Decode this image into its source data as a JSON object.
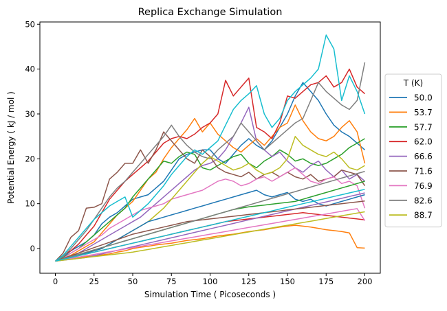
{
  "chart_data": {
    "type": "line",
    "title": "Replica Exchange Simulation",
    "xlabel": "Simulation Time ( Picoseconds )",
    "ylabel": "Potential Energy ( kJ / mol )",
    "xlim": [
      -10,
      210
    ],
    "ylim": [
      -5.5,
      50.5
    ],
    "xticks": [
      0,
      25,
      50,
      75,
      100,
      125,
      150,
      175,
      200
    ],
    "yticks": [
      0,
      10,
      20,
      30,
      40,
      50
    ],
    "legend": {
      "title": "T (K)",
      "position": "right-outside"
    },
    "x": [
      0,
      5,
      10,
      15,
      20,
      25,
      30,
      35,
      40,
      45,
      50,
      55,
      60,
      65,
      70,
      75,
      80,
      85,
      90,
      95,
      100,
      105,
      110,
      115,
      120,
      125,
      130,
      135,
      140,
      145,
      150,
      155,
      160,
      165,
      170,
      175,
      180,
      185,
      190,
      195,
      200
    ],
    "series": [
      {
        "name": "50.0",
        "color": "#1f77b4",
        "values": [
          -2.8,
          -2.0,
          -0.5,
          0.5,
          1.5,
          3.0,
          5.5,
          7.0,
          8.0,
          9.5,
          11.0,
          11.5,
          12.0,
          13.5,
          15.0,
          17.5,
          20.0,
          21.0,
          21.5,
          22.0,
          22.0,
          20.0,
          19.0,
          21.0,
          23.0,
          24.5,
          23.0,
          22.0,
          24.0,
          27.0,
          30.0,
          34.0,
          37.0,
          35.0,
          33.0,
          30.0,
          27.5,
          26.0,
          25.0,
          23.5,
          22.0
        ]
      },
      {
        "name": "53.7",
        "color": "#ff7f0e",
        "values": [
          -2.8,
          -2.2,
          -1.5,
          -0.5,
          0.5,
          1.5,
          3.5,
          5.5,
          7.5,
          9.0,
          10.5,
          13.0,
          15.5,
          17.0,
          20.0,
          22.5,
          24.5,
          26.5,
          29.0,
          26.0,
          28.0,
          25.5,
          24.0,
          22.5,
          21.5,
          23.0,
          24.5,
          23.0,
          25.0,
          27.0,
          28.0,
          32.0,
          28.5,
          26.0,
          24.5,
          24.0,
          25.0,
          27.0,
          28.5,
          26.0,
          19.0
        ]
      },
      {
        "name": "57.7",
        "color": "#2ca02c",
        "values": [
          -2.8,
          -2.0,
          -1.0,
          0.0,
          1.5,
          3.0,
          4.5,
          6.0,
          7.5,
          9.0,
          11.5,
          13.5,
          15.5,
          17.5,
          19.5,
          19.0,
          20.5,
          21.5,
          21.0,
          18.0,
          17.5,
          18.5,
          19.5,
          20.5,
          21.0,
          19.0,
          18.0,
          19.5,
          20.5,
          22.0,
          21.0,
          19.5,
          20.0,
          19.0,
          18.5,
          19.0,
          20.0,
          21.0,
          22.5,
          23.5,
          24.5
        ]
      },
      {
        "name": "62.0",
        "color": "#d62728",
        "values": [
          -2.8,
          -1.5,
          -0.5,
          1.0,
          3.0,
          5.0,
          8.0,
          11.0,
          13.0,
          15.0,
          16.5,
          18.0,
          19.5,
          21.5,
          23.5,
          24.5,
          25.0,
          24.5,
          25.5,
          27.0,
          28.0,
          30.0,
          37.5,
          34.0,
          36.0,
          38.0,
          27.0,
          26.0,
          24.5,
          28.0,
          34.0,
          33.5,
          35.0,
          36.5,
          37.0,
          38.5,
          36.0,
          37.0,
          40.0,
          36.0,
          34.5
        ]
      },
      {
        "name": "66.6",
        "color": "#9467bd",
        "values": [
          -2.8,
          -2.5,
          -1.8,
          -1.0,
          0.0,
          1.0,
          2.0,
          3.0,
          4.0,
          5.0,
          6.0,
          7.0,
          8.5,
          10.0,
          11.5,
          13.0,
          14.5,
          16.0,
          17.5,
          18.5,
          19.0,
          20.0,
          22.0,
          25.0,
          28.0,
          31.5,
          24.0,
          22.0,
          20.5,
          21.5,
          19.5,
          18.0,
          17.0,
          18.5,
          19.5,
          17.5,
          16.0,
          17.5,
          15.5,
          16.5,
          15.0
        ]
      },
      {
        "name": "71.6",
        "color": "#8c564b",
        "values": [
          -2.8,
          -1.0,
          2.5,
          4.0,
          9.0,
          9.2,
          10.0,
          15.5,
          17.0,
          19.0,
          19.0,
          22.0,
          19.0,
          22.0,
          26.0,
          24.0,
          22.0,
          20.0,
          19.0,
          22.0,
          20.5,
          18.0,
          17.0,
          16.5,
          16.0,
          17.0,
          15.5,
          16.5,
          17.0,
          16.0,
          17.0,
          16.0,
          15.5,
          16.5,
          15.0,
          15.5,
          16.0,
          17.5,
          17.0,
          16.5,
          14.0
        ]
      },
      {
        "name": "76.9",
        "color": "#e377c2",
        "values": [
          -2.8,
          -2.2,
          -1.0,
          0.0,
          1.0,
          2.0,
          3.0,
          4.5,
          5.5,
          6.5,
          7.5,
          8.5,
          9.0,
          9.5,
          10.0,
          11.0,
          11.5,
          12.0,
          12.5,
          13.0,
          14.0,
          15.0,
          15.5,
          15.0,
          14.0,
          14.5,
          15.5,
          16.0,
          15.0,
          16.0,
          17.0,
          18.0,
          16.5,
          15.0,
          14.5,
          15.5,
          16.0,
          14.5,
          15.0,
          14.0,
          9.0
        ]
      },
      {
        "name": "82.6",
        "color": "#7f7f7f",
        "values": [
          -2.8,
          -1.8,
          0.0,
          2.0,
          4.0,
          6.5,
          9.0,
          11.5,
          13.5,
          15.0,
          17.0,
          19.0,
          21.0,
          23.0,
          25.0,
          27.5,
          25.0,
          23.0,
          21.5,
          20.5,
          20.0,
          22.0,
          23.5,
          25.0,
          28.0,
          26.0,
          24.0,
          22.0,
          23.5,
          25.0,
          26.5,
          28.0,
          29.0,
          33.0,
          37.0,
          35.0,
          33.5,
          32.0,
          31.0,
          33.0,
          41.5
        ]
      },
      {
        "name": "88.7",
        "color": "#bcbd22",
        "values": [
          -2.8,
          -2.5,
          -2.0,
          -1.5,
          -1.0,
          -0.5,
          0.0,
          1.0,
          2.0,
          3.0,
          4.0,
          5.0,
          6.0,
          7.5,
          9.0,
          11.0,
          13.0,
          15.0,
          17.0,
          19.0,
          20.5,
          19.5,
          18.5,
          17.5,
          18.0,
          19.0,
          17.5,
          16.5,
          17.0,
          18.0,
          20.0,
          25.0,
          23.0,
          22.0,
          21.0,
          20.5,
          21.5,
          20.0,
          18.0,
          17.5,
          18.5
        ]
      },
      {
        "color": "#17becf",
        "values": [
          -2.8,
          -1.5,
          0.5,
          2.5,
          4.5,
          6.5,
          8.0,
          9.5,
          10.5,
          11.5,
          7.0,
          8.5,
          10.0,
          12.0,
          14.0,
          16.5,
          18.5,
          20.5,
          22.0,
          21.0,
          22.5,
          24.0,
          27.5,
          31.0,
          33.0,
          34.5,
          36.3,
          30.0,
          27.0,
          29.0,
          33.0,
          35.0,
          36.5,
          38.0,
          40.0,
          47.6,
          44.5,
          33.0,
          38.5,
          35.0,
          30.0
        ]
      },
      {
        "color": "#1f77b4",
        "values": [
          -2.8,
          -2.5,
          -2.0,
          -1.5,
          -1.0,
          -0.5,
          0.0,
          1.0,
          2.0,
          3.0,
          4.0,
          5.0,
          6.0,
          6.5,
          7.0,
          7.5,
          8.0,
          8.5,
          9.0,
          9.5,
          10.0,
          10.5,
          11.0,
          11.5,
          12.0,
          12.5,
          13.0,
          12.0,
          11.5,
          12.0,
          12.5,
          11.0,
          10.5,
          11.0,
          10.0,
          9.5,
          10.0,
          10.5,
          11.0,
          11.5,
          12.0
        ]
      },
      {
        "color": "#ff7f0e",
        "values": [
          -2.8,
          -2.5,
          -2.2,
          -2.0,
          -1.8,
          -1.6,
          -1.4,
          -1.2,
          -0.8,
          -0.5,
          0.0,
          0.3,
          0.5,
          0.8,
          1.0,
          1.2,
          1.5,
          1.8,
          2.0,
          2.2,
          2.5,
          2.8,
          3.0,
          3.2,
          3.5,
          3.8,
          4.0,
          4.2,
          4.5,
          4.8,
          5.0,
          5.2,
          5.0,
          4.8,
          4.5,
          4.2,
          4.0,
          3.8,
          3.5,
          0.2,
          0.1
        ]
      },
      {
        "color": "#2ca02c",
        "values": [
          -2.8,
          -2.3,
          -1.8,
          -1.3,
          -0.8,
          -0.3,
          0.2,
          0.7,
          1.2,
          1.7,
          2.2,
          2.7,
          3.2,
          3.7,
          4.2,
          4.7,
          5.2,
          5.7,
          6.2,
          6.7,
          7.2,
          7.7,
          8.2,
          8.7,
          9.0,
          9.3,
          9.5,
          9.7,
          9.9,
          10.1,
          10.3,
          10.5,
          11.0,
          11.5,
          12.0,
          12.5,
          13.0,
          13.5,
          14.0,
          14.5,
          15.0
        ]
      },
      {
        "color": "#d62728",
        "values": [
          -2.8,
          -2.4,
          -2.0,
          -1.6,
          -1.2,
          -0.8,
          -0.4,
          0.0,
          0.4,
          0.8,
          1.2,
          1.6,
          2.0,
          2.4,
          2.8,
          3.2,
          3.6,
          4.0,
          4.4,
          4.8,
          5.2,
          5.6,
          6.0,
          6.2,
          6.4,
          6.6,
          6.8,
          7.0,
          7.2,
          7.4,
          7.6,
          7.8,
          8.0,
          7.8,
          7.6,
          7.4,
          7.2,
          7.0,
          6.8,
          6.6,
          6.4
        ]
      },
      {
        "color": "#9467bd",
        "values": [
          -2.8,
          -2.6,
          -2.4,
          -2.2,
          -2.0,
          -1.6,
          -1.2,
          -0.8,
          -0.4,
          0.0,
          0.4,
          0.8,
          1.2,
          1.6,
          2.0,
          2.4,
          2.8,
          3.2,
          3.6,
          4.0,
          4.4,
          4.8,
          5.2,
          5.6,
          6.0,
          6.4,
          6.8,
          7.2,
          7.6,
          8.0,
          8.4,
          8.8,
          9.2,
          9.6,
          10.0,
          10.4,
          10.8,
          11.2,
          11.6,
          12.0,
          12.4
        ]
      },
      {
        "color": "#8c564b",
        "values": [
          -2.8,
          -2.2,
          -1.6,
          -1.0,
          -0.4,
          0.2,
          0.8,
          1.4,
          2.0,
          2.6,
          3.2,
          3.6,
          4.0,
          4.4,
          4.8,
          5.2,
          5.6,
          6.0,
          6.2,
          6.4,
          6.6,
          6.8,
          7.0,
          7.2,
          7.4,
          7.6,
          7.8,
          8.0,
          8.2,
          8.4,
          8.6,
          8.8,
          9.0,
          9.2,
          9.4,
          9.6,
          9.8,
          10.0,
          10.2,
          10.4,
          10.6
        ]
      },
      {
        "color": "#e377c2",
        "values": [
          -2.8,
          -2.5,
          -2.2,
          -1.9,
          -1.6,
          -1.3,
          -1.0,
          -0.7,
          -0.4,
          -0.1,
          0.2,
          0.5,
          0.8,
          1.1,
          1.4,
          1.7,
          2.0,
          2.3,
          2.6,
          2.9,
          3.2,
          3.5,
          3.8,
          4.1,
          4.4,
          4.7,
          5.0,
          5.3,
          5.6,
          5.9,
          6.2,
          6.5,
          6.8,
          7.1,
          7.4,
          7.7,
          8.0,
          8.3,
          8.6,
          8.9,
          6.2
        ]
      },
      {
        "color": "#7f7f7f",
        "values": [
          -2.8,
          -2.3,
          -1.8,
          -1.3,
          -0.8,
          -0.3,
          0.2,
          0.7,
          1.2,
          1.7,
          2.2,
          2.7,
          3.2,
          3.7,
          4.2,
          4.7,
          5.2,
          5.7,
          6.2,
          6.7,
          7.2,
          7.7,
          8.2,
          8.7,
          9.2,
          9.7,
          10.2,
          10.7,
          11.2,
          11.7,
          12.2,
          12.7,
          13.2,
          13.7,
          14.2,
          14.7,
          15.2,
          15.7,
          16.2,
          16.7,
          17.2
        ]
      },
      {
        "color": "#bcbd22",
        "values": [
          -2.8,
          -2.6,
          -2.4,
          -2.2,
          -2.0,
          -1.8,
          -1.6,
          -1.4,
          -1.2,
          -1.0,
          -0.8,
          -0.5,
          -0.2,
          0.1,
          0.4,
          0.7,
          1.0,
          1.3,
          1.6,
          1.9,
          2.2,
          2.5,
          2.8,
          3.1,
          3.4,
          3.7,
          4.0,
          4.3,
          4.6,
          4.9,
          5.2,
          5.5,
          5.8,
          6.1,
          6.4,
          6.7,
          7.0,
          7.3,
          7.6,
          7.9,
          8.2
        ]
      },
      {
        "color": "#17becf",
        "values": [
          -2.8,
          -2.4,
          -2.0,
          -1.6,
          -1.2,
          -0.8,
          -0.4,
          0.0,
          0.4,
          0.8,
          1.2,
          1.6,
          2.0,
          2.4,
          2.8,
          3.2,
          3.6,
          4.0,
          4.4,
          4.8,
          5.2,
          5.6,
          6.0,
          6.4,
          6.8,
          7.2,
          7.6,
          8.0,
          8.4,
          8.8,
          9.2,
          9.6,
          10.0,
          10.4,
          10.8,
          11.2,
          11.6,
          12.0,
          12.4,
          12.8,
          13.2
        ]
      }
    ]
  }
}
